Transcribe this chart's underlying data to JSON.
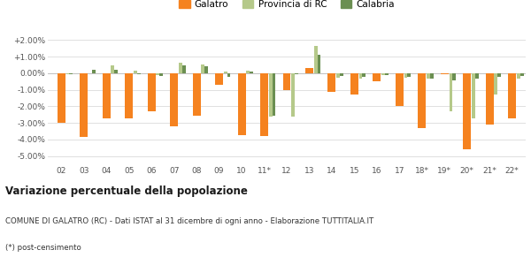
{
  "categories": [
    "02",
    "03",
    "04",
    "05",
    "06",
    "07",
    "08",
    "09",
    "10",
    "11*",
    "12",
    "13",
    "14",
    "15",
    "16",
    "17",
    "18*",
    "19*",
    "20*",
    "21*",
    "22*"
  ],
  "galatro": [
    -3.0,
    -3.85,
    -2.75,
    -2.7,
    -2.3,
    -3.2,
    -2.55,
    -0.7,
    -3.75,
    -3.8,
    -1.0,
    0.3,
    -1.1,
    -1.3,
    -0.5,
    -2.0,
    -3.3,
    -0.05,
    -4.6,
    -3.1,
    -2.7
  ],
  "provincia_rc": [
    -0.05,
    0.0,
    0.45,
    0.15,
    -0.1,
    0.65,
    0.55,
    0.1,
    0.15,
    -2.6,
    -2.6,
    1.65,
    -0.25,
    -0.3,
    -0.1,
    -0.25,
    -0.35,
    -2.3,
    -2.7,
    -1.3,
    -0.35
  ],
  "calabria": [
    -0.05,
    0.2,
    0.2,
    -0.05,
    -0.15,
    0.45,
    0.4,
    -0.2,
    0.1,
    -2.55,
    -0.05,
    1.1,
    -0.15,
    -0.2,
    -0.1,
    -0.2,
    -0.3,
    -0.45,
    -0.35,
    -0.2,
    -0.15
  ],
  "color_galatro": "#f5821f",
  "color_provincia": "#b5c98a",
  "color_calabria": "#6b8f52",
  "ylim": [
    -5.5,
    2.5
  ],
  "yticks": [
    -5.0,
    -4.0,
    -3.0,
    -2.0,
    -1.0,
    0.0,
    1.0,
    2.0
  ],
  "ytick_labels": [
    "-5.00%",
    "-4.00%",
    "-3.00%",
    "-2.00%",
    "-1.00%",
    "0.00%",
    "+1.00%",
    "+2.00%"
  ],
  "title": "Variazione percentuale della popolazione",
  "subtitle": "COMUNE DI GALATRO (RC) - Dati ISTAT al 31 dicembre di ogni anno - Elaborazione TUTTITALIA.IT",
  "footnote": "(*) post-censimento",
  "bg_color": "#ffffff",
  "grid_color": "#e0e0e0"
}
